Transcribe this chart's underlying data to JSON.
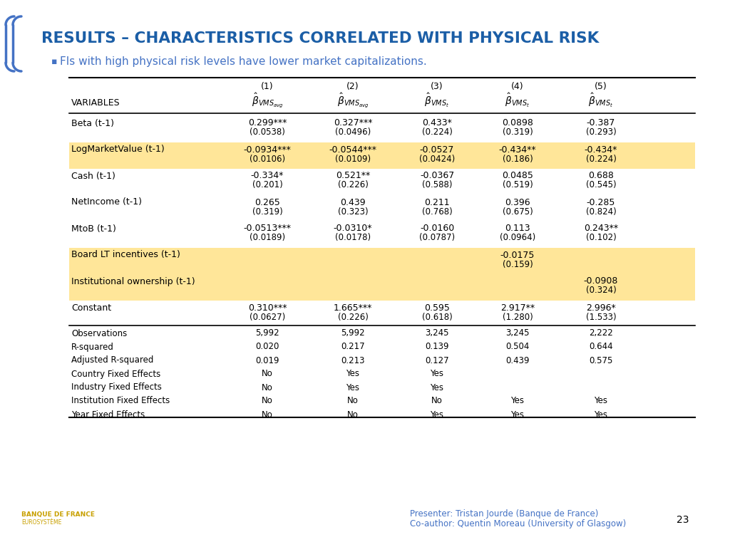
{
  "title": "RESULTS – CHARACTERISTICS CORRELATED WITH PHYSICAL RISK",
  "title_color": "#1B5EA6",
  "subtitle": "FIs with high physical risk levels have lower market capitalizations.",
  "subtitle_color": "#4472C4",
  "bg_color": "#FFFFFF",
  "highlight_color": "#FFE699",
  "col_numbers": [
    "(1)",
    "(2)",
    "(3)",
    "(4)",
    "(5)"
  ],
  "beta_labels": [
    "$\\hat{\\beta}_{VMS_{avg}}$",
    "$\\hat{\\beta}_{VMS_{avg}}$",
    "$\\hat{\\beta}_{VMS_{t}}$",
    "$\\hat{\\beta}_{VMS_{t}}$",
    "$\\hat{\\beta}_{VMS_{t}}$"
  ],
  "rows": [
    {
      "label": "Beta (t-1)",
      "vals": [
        "0.299***",
        "0.327***",
        "0.433*",
        "0.0898",
        "-0.387"
      ],
      "se": [
        "(0.0538)",
        "(0.0496)",
        "(0.224)",
        "(0.319)",
        "(0.293)"
      ],
      "highlight": false
    },
    {
      "label": "LogMarketValue (t-1)",
      "vals": [
        "-0.0934***",
        "-0.0544***",
        "-0.0527",
        "-0.434**",
        "-0.434*"
      ],
      "se": [
        "(0.0106)",
        "(0.0109)",
        "(0.0424)",
        "(0.186)",
        "(0.224)"
      ],
      "highlight": true
    },
    {
      "label": "Cash (t-1)",
      "vals": [
        "-0.334*",
        "0.521**",
        "-0.0367",
        "0.0485",
        "0.688"
      ],
      "se": [
        "(0.201)",
        "(0.226)",
        "(0.588)",
        "(0.519)",
        "(0.545)"
      ],
      "highlight": false
    },
    {
      "label": "NetIncome (t-1)",
      "vals": [
        "0.265",
        "0.439",
        "0.211",
        "0.396",
        "-0.285"
      ],
      "se": [
        "(0.319)",
        "(0.323)",
        "(0.768)",
        "(0.675)",
        "(0.824)"
      ],
      "highlight": false
    },
    {
      "label": "MtoB (t-1)",
      "vals": [
        "-0.0513***",
        "-0.0310*",
        "-0.0160",
        "0.113",
        "0.243**"
      ],
      "se": [
        "(0.0189)",
        "(0.0178)",
        "(0.0787)",
        "(0.0964)",
        "(0.102)"
      ],
      "highlight": false
    },
    {
      "label": "Board LT incentives (t-1)",
      "vals": [
        "",
        "",
        "",
        "-0.0175",
        ""
      ],
      "se": [
        "",
        "",
        "",
        "(0.159)",
        ""
      ],
      "highlight": true
    },
    {
      "label": "Institutional ownership (t-1)",
      "vals": [
        "",
        "",
        "",
        "",
        "-0.0908"
      ],
      "se": [
        "",
        "",
        "",
        "",
        "(0.324)"
      ],
      "highlight": true
    },
    {
      "label": "Constant",
      "vals": [
        "0.310***",
        "1.665***",
        "0.595",
        "2.917**",
        "2.996*"
      ],
      "se": [
        "(0.0627)",
        "(0.226)",
        "(0.618)",
        "(1.280)",
        "(1.533)"
      ],
      "highlight": false
    }
  ],
  "stats": [
    {
      "label": "Observations",
      "vals": [
        "5,992",
        "5,992",
        "3,245",
        "3,245",
        "2,222"
      ]
    },
    {
      "label": "R-squared",
      "vals": [
        "0.020",
        "0.217",
        "0.139",
        "0.504",
        "0.644"
      ]
    },
    {
      "label": "Adjusted R-squared",
      "vals": [
        "0.019",
        "0.213",
        "0.127",
        "0.439",
        "0.575"
      ]
    },
    {
      "label": "Country Fixed Effects",
      "vals": [
        "No",
        "Yes",
        "Yes",
        "",
        ""
      ]
    },
    {
      "label": "Industry Fixed Effects",
      "vals": [
        "No",
        "Yes",
        "Yes",
        "",
        ""
      ]
    },
    {
      "label": "Institution Fixed Effects",
      "vals": [
        "No",
        "No",
        "No",
        "Yes",
        "Yes"
      ]
    },
    {
      "label": "Year Fixed Effects",
      "vals": [
        "No",
        "No",
        "Yes",
        "Yes",
        "Yes"
      ]
    }
  ],
  "footer_presenter": "Presenter: Tristan Jourde (Banque de France)",
  "footer_coauthor": "Co-author: Quentin Moreau (University of Glasgow)",
  "footer_page": "23",
  "footer_color": "#4472C4"
}
